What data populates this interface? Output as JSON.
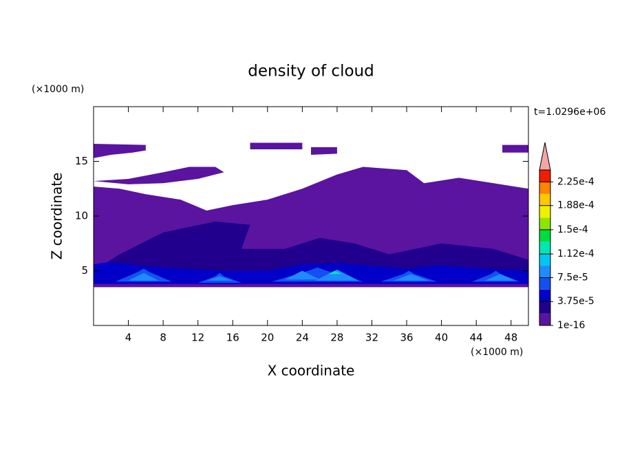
{
  "chart_data": {
    "type": "contour",
    "title": "density of cloud",
    "subtitle": "t=1.0296e+06",
    "x_label": "X coordinate",
    "y_label": "Z coordinate",
    "x_unit": "(×1000 m)",
    "y_unit": "(×1000 m)",
    "xlim": [
      0,
      50
    ],
    "ylim": [
      0,
      20
    ],
    "xticks": [
      4,
      8,
      12,
      16,
      20,
      24,
      28,
      32,
      36,
      40,
      44,
      48
    ],
    "yticks": [
      5,
      10,
      15
    ],
    "colorbar": {
      "levels": [
        1e-16,
        1.875e-05,
        3.75e-05,
        5.625e-05,
        7.5e-05,
        9.375e-05,
        0.0001125,
        0.00013125,
        0.00015,
        0.00016875,
        0.0001875,
        0.00020625,
        0.000225,
        0.00024375
      ],
      "colors": [
        "#5a14a0",
        "#20008c",
        "#0000c8",
        "#1450f0",
        "#1e8cff",
        "#00c8f0",
        "#00e6b4",
        "#00dc3c",
        "#8ce600",
        "#f0f000",
        "#ffc800",
        "#ff8200",
        "#f01e00"
      ],
      "extend_color": "#f4a6a6",
      "ticks": [
        {
          "value": 1e-16,
          "label": "1e-16"
        },
        {
          "value": 3.75e-05,
          "label": "3.75e-5"
        },
        {
          "value": 7.5e-05,
          "label": "7.5e-5"
        },
        {
          "value": 0.000112,
          "label": "1.12e-4"
        },
        {
          "value": 0.00015,
          "label": "1.5e-4"
        },
        {
          "value": 0.000188,
          "label": "1.88e-4"
        },
        {
          "value": 0.000225,
          "label": "2.25e-4"
        }
      ]
    },
    "regions": [
      {
        "value": 1e-16,
        "points": [
          [
            0,
            3.5
          ],
          [
            50,
            3.5
          ],
          [
            50,
            12.5
          ],
          [
            46,
            13
          ],
          [
            42,
            13.5
          ],
          [
            38,
            13
          ],
          [
            36,
            14.2
          ],
          [
            31,
            14.5
          ],
          [
            28,
            13.8
          ],
          [
            24,
            12.5
          ],
          [
            20,
            11.5
          ],
          [
            16,
            11
          ],
          [
            13,
            10.5
          ],
          [
            10,
            11.5
          ],
          [
            6,
            12
          ],
          [
            3,
            12.5
          ],
          [
            0,
            12.7
          ]
        ]
      },
      {
        "value": 1e-16,
        "points": [
          [
            0,
            13.2
          ],
          [
            4,
            13.4
          ],
          [
            8,
            14
          ],
          [
            11,
            14.5
          ],
          [
            14,
            14.5
          ],
          [
            15,
            14
          ],
          [
            12,
            13.4
          ],
          [
            8,
            13
          ],
          [
            4,
            12.9
          ]
        ]
      },
      {
        "value": 1e-16,
        "points": [
          [
            0,
            15.3
          ],
          [
            2,
            15.6
          ],
          [
            4.5,
            15.8
          ],
          [
            6,
            16
          ],
          [
            6,
            16.5
          ],
          [
            0,
            16.6
          ]
        ]
      },
      {
        "value": 1e-16,
        "points": [
          [
            18,
            16.1
          ],
          [
            24,
            16.1
          ],
          [
            24,
            16.7
          ],
          [
            18,
            16.7
          ]
        ]
      },
      {
        "value": 1e-16,
        "points": [
          [
            25,
            15.6
          ],
          [
            28,
            15.7
          ],
          [
            28,
            16.3
          ],
          [
            25,
            16.3
          ]
        ]
      },
      {
        "value": 1e-16,
        "points": [
          [
            47,
            15.8
          ],
          [
            50,
            15.8
          ],
          [
            50,
            16.5
          ],
          [
            47,
            16.5
          ]
        ]
      },
      {
        "value": 2e-05,
        "points": [
          [
            0,
            4
          ],
          [
            50,
            4
          ],
          [
            50,
            6
          ],
          [
            46,
            7
          ],
          [
            40,
            7.5
          ],
          [
            34,
            6.5
          ],
          [
            30,
            7.5
          ],
          [
            26,
            8
          ],
          [
            22,
            7
          ],
          [
            17,
            7
          ],
          [
            18,
            9.2
          ],
          [
            14,
            9.5
          ],
          [
            8,
            8.5
          ],
          [
            3,
            6.5
          ],
          [
            0,
            5
          ]
        ]
      },
      {
        "value": 4e-05,
        "points": [
          [
            0,
            3.8
          ],
          [
            50,
            3.8
          ],
          [
            50,
            5
          ],
          [
            45,
            5.2
          ],
          [
            40,
            5.5
          ],
          [
            36,
            5.2
          ],
          [
            33,
            5.4
          ],
          [
            28,
            5.7
          ],
          [
            24,
            5.6
          ],
          [
            20,
            5
          ],
          [
            15,
            5
          ],
          [
            10,
            5.2
          ],
          [
            5,
            5.5
          ],
          [
            2,
            5.8
          ],
          [
            0,
            5.6
          ]
        ]
      },
      {
        "value": 6e-05,
        "points": [
          [
            2.5,
            4
          ],
          [
            5.1,
            4.9
          ],
          [
            5.75,
            5.2
          ],
          [
            6.4,
            4.9
          ],
          [
            9,
            4
          ]
        ]
      },
      {
        "value": 6e-05,
        "points": [
          [
            12,
            3.9
          ],
          [
            14,
            4.5
          ],
          [
            14.5,
            4.8
          ],
          [
            15,
            4.5
          ],
          [
            17,
            3.9
          ]
        ]
      },
      {
        "value": 6e-05,
        "points": [
          [
            20.5,
            4
          ],
          [
            24.7,
            5
          ],
          [
            25.75,
            5.3
          ],
          [
            26.8,
            5
          ],
          [
            31,
            4
          ]
        ]
      },
      {
        "value": 6e-05,
        "points": [
          [
            33,
            4
          ],
          [
            35.6,
            4.7
          ],
          [
            36.25,
            5
          ],
          [
            36.9,
            4.7
          ],
          [
            39.5,
            4
          ]
        ]
      },
      {
        "value": 6e-05,
        "points": [
          [
            43.5,
            4
          ],
          [
            45.7,
            4.7
          ],
          [
            46.25,
            5
          ],
          [
            46.8,
            4.7
          ],
          [
            49,
            4
          ]
        ]
      },
      {
        "value": 8e-05,
        "points": [
          [
            4,
            4.1
          ],
          [
            5.75,
            4.8
          ],
          [
            7.5,
            4.1
          ]
        ]
      },
      {
        "value": 8e-05,
        "points": [
          [
            13,
            4.1
          ],
          [
            14.5,
            4.5
          ],
          [
            16,
            4.1
          ]
        ]
      },
      {
        "value": 8e-05,
        "points": [
          [
            22,
            4.2
          ],
          [
            24,
            5
          ],
          [
            26,
            4.2
          ]
        ]
      },
      {
        "value": 8e-05,
        "points": [
          [
            25.5,
            4.1
          ],
          [
            28,
            5.1
          ],
          [
            30.5,
            4.1
          ]
        ]
      },
      {
        "value": 8e-05,
        "points": [
          [
            34.5,
            4.1
          ],
          [
            36.5,
            4.7
          ],
          [
            38.5,
            4.1
          ]
        ]
      },
      {
        "value": 8e-05,
        "points": [
          [
            45,
            4.1
          ],
          [
            46.75,
            4.7
          ],
          [
            48.5,
            4.1
          ]
        ]
      },
      {
        "value": 0.00013,
        "points": [
          [
            27,
            4.7
          ],
          [
            27.75,
            5.0
          ],
          [
            28.5,
            4.7
          ]
        ]
      }
    ]
  }
}
